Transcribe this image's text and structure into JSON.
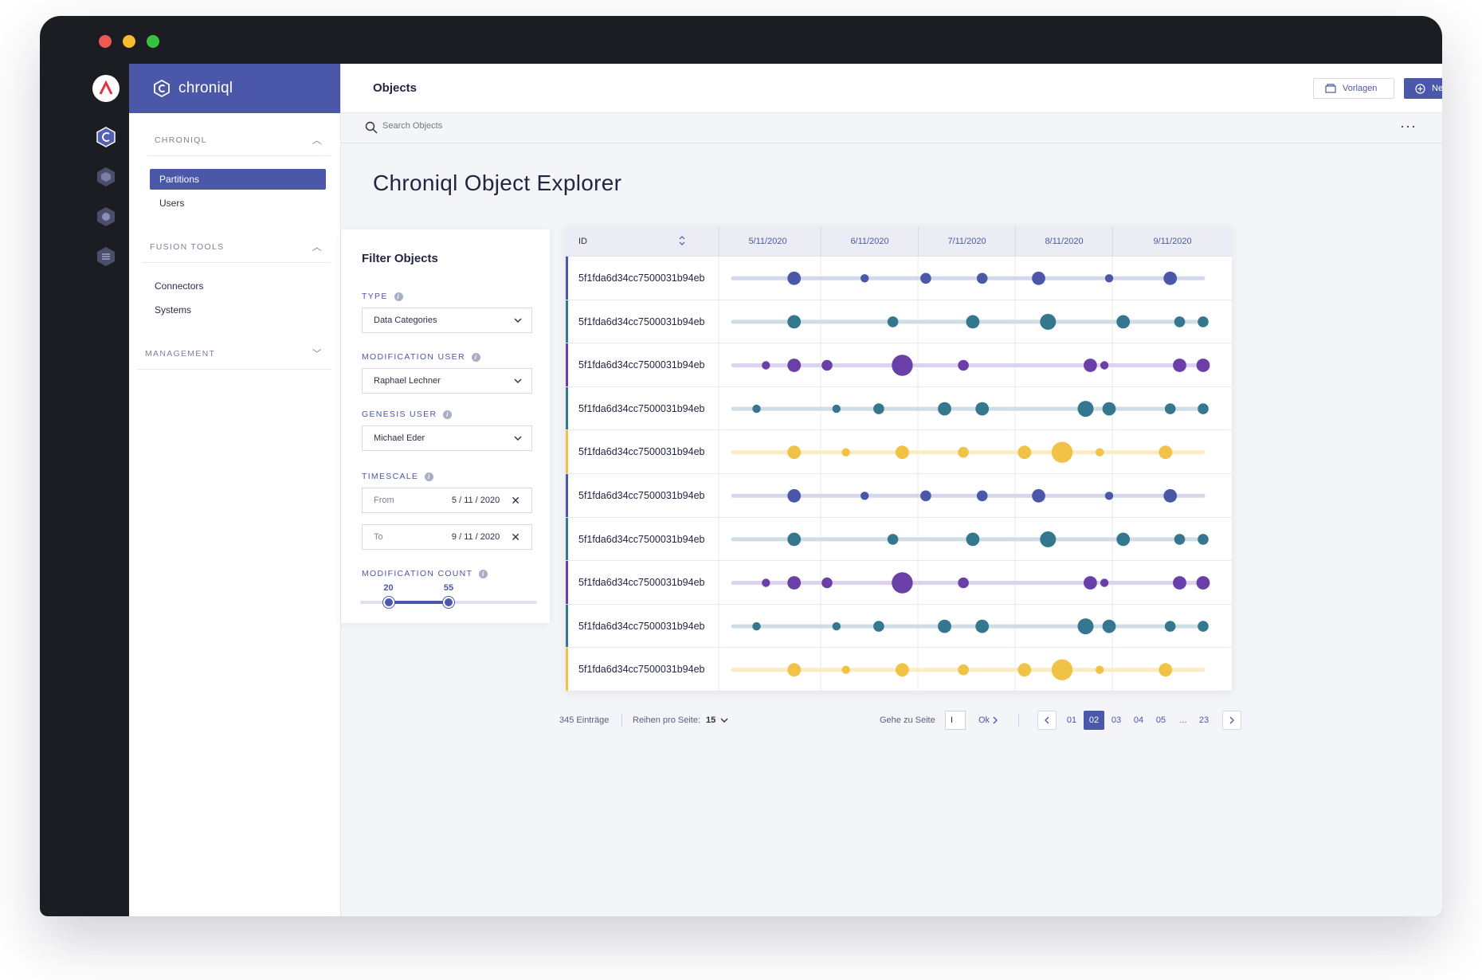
{
  "app": {
    "brand": "chroniql"
  },
  "sidebar": {
    "sections": [
      {
        "title": "CHRONIQL",
        "expanded": true,
        "items": [
          {
            "label": "Partitions",
            "active": true
          },
          {
            "label": "Users",
            "active": false
          }
        ]
      },
      {
        "title": "FUSION TOOLS",
        "expanded": true,
        "items": [
          {
            "label": "Connectors",
            "active": false
          },
          {
            "label": "Systems",
            "active": false
          }
        ]
      },
      {
        "title": "MANAGEMENT",
        "expanded": false,
        "items": []
      }
    ]
  },
  "header": {
    "title": "Objects",
    "vorlagen_label": "Vorlagen",
    "neu_label": "Neu"
  },
  "search": {
    "placeholder": "Search Objects"
  },
  "page": {
    "title": "Chroniql Object Explorer"
  },
  "filter": {
    "title": "Filter Objects",
    "type": {
      "label": "TYPE",
      "value": "Data Categories"
    },
    "modification_user": {
      "label": "MODIFICATION USER",
      "value": "Raphael Lechner"
    },
    "genesis_user": {
      "label": "GENESIS USER",
      "value": "Michael Eder"
    },
    "timescale": {
      "label": "TIMESCALE",
      "from_label": "From",
      "from_value": "5 / 11 / 2020",
      "to_label": "To",
      "to_value": "9 / 11 / 2020"
    },
    "modification_count": {
      "label": "MODIFICATION COUNT",
      "min": "20",
      "max": "55",
      "min_frac": 0.16,
      "max_frac": 0.5
    }
  },
  "table": {
    "id_header": "ID",
    "date_headers": [
      "5/11/2020",
      "6/11/2020",
      "7/11/2020",
      "8/11/2020",
      "9/11/2020"
    ],
    "row_id": "5f1fda6d34cc7500031b94eb",
    "colors": {
      "blue": "#4b57a8",
      "teal": "#34778f",
      "purple": "#6b3fa8",
      "yellow": "#f0c246"
    },
    "rows": [
      {
        "color": "blue",
        "dots": [
          [
            0.13,
            4
          ],
          [
            0.28,
            2
          ],
          [
            0.41,
            3
          ],
          [
            0.53,
            3
          ],
          [
            0.65,
            4
          ],
          [
            0.8,
            2
          ],
          [
            0.93,
            4
          ]
        ]
      },
      {
        "color": "teal",
        "dots": [
          [
            0.13,
            4
          ],
          [
            0.34,
            3
          ],
          [
            0.51,
            4
          ],
          [
            0.67,
            5
          ],
          [
            0.83,
            4
          ],
          [
            0.95,
            3
          ],
          [
            1.07,
            3
          ]
        ]
      },
      {
        "color": "purple",
        "dots": [
          [
            0.07,
            2
          ],
          [
            0.13,
            4
          ],
          [
            0.2,
            3
          ],
          [
            0.36,
            7
          ],
          [
            0.49,
            3
          ],
          [
            0.76,
            4
          ],
          [
            0.79,
            2
          ],
          [
            0.95,
            4
          ],
          [
            1.05,
            4
          ]
        ]
      },
      {
        "color": "teal",
        "dots": [
          [
            0.05,
            2
          ],
          [
            0.22,
            2
          ],
          [
            0.31,
            3
          ],
          [
            0.45,
            4
          ],
          [
            0.53,
            4
          ],
          [
            0.75,
            5
          ],
          [
            0.8,
            4
          ],
          [
            0.93,
            3
          ],
          [
            1.05,
            3
          ]
        ]
      },
      {
        "color": "yellow",
        "dots": [
          [
            0.13,
            4
          ],
          [
            0.24,
            2
          ],
          [
            0.36,
            4
          ],
          [
            0.49,
            3
          ],
          [
            0.62,
            4
          ],
          [
            0.7,
            7
          ],
          [
            0.78,
            2
          ],
          [
            0.92,
            4
          ]
        ]
      },
      {
        "color": "blue",
        "dots": [
          [
            0.13,
            4
          ],
          [
            0.28,
            2
          ],
          [
            0.41,
            3
          ],
          [
            0.53,
            3
          ],
          [
            0.65,
            4
          ],
          [
            0.8,
            2
          ],
          [
            0.93,
            4
          ]
        ]
      },
      {
        "color": "teal",
        "dots": [
          [
            0.13,
            4
          ],
          [
            0.34,
            3
          ],
          [
            0.51,
            4
          ],
          [
            0.67,
            5
          ],
          [
            0.83,
            4
          ],
          [
            0.95,
            3
          ],
          [
            1.07,
            3
          ]
        ]
      },
      {
        "color": "purple",
        "dots": [
          [
            0.07,
            2
          ],
          [
            0.13,
            4
          ],
          [
            0.2,
            3
          ],
          [
            0.36,
            7
          ],
          [
            0.49,
            3
          ],
          [
            0.76,
            4
          ],
          [
            0.79,
            2
          ],
          [
            0.95,
            4
          ],
          [
            1.05,
            4
          ]
        ]
      },
      {
        "color": "teal",
        "dots": [
          [
            0.05,
            2
          ],
          [
            0.22,
            2
          ],
          [
            0.31,
            3
          ],
          [
            0.45,
            4
          ],
          [
            0.53,
            4
          ],
          [
            0.75,
            5
          ],
          [
            0.8,
            4
          ],
          [
            0.93,
            3
          ],
          [
            1.05,
            3
          ]
        ]
      },
      {
        "color": "yellow",
        "dots": [
          [
            0.13,
            4
          ],
          [
            0.24,
            2
          ],
          [
            0.36,
            4
          ],
          [
            0.49,
            3
          ],
          [
            0.62,
            4
          ],
          [
            0.7,
            7
          ],
          [
            0.78,
            2
          ],
          [
            0.92,
            4
          ]
        ]
      }
    ]
  },
  "footer": {
    "entries": "345 Einträge",
    "rows_per_page_label": "Reihen pro Seite:",
    "rows_per_page_value": "15",
    "goto_label": "Gehe zu Seite",
    "goto_value": "I",
    "ok_label": "Ok",
    "pages": [
      "01",
      "02",
      "03",
      "04",
      "05",
      "...",
      "23"
    ],
    "current_page": "02"
  }
}
